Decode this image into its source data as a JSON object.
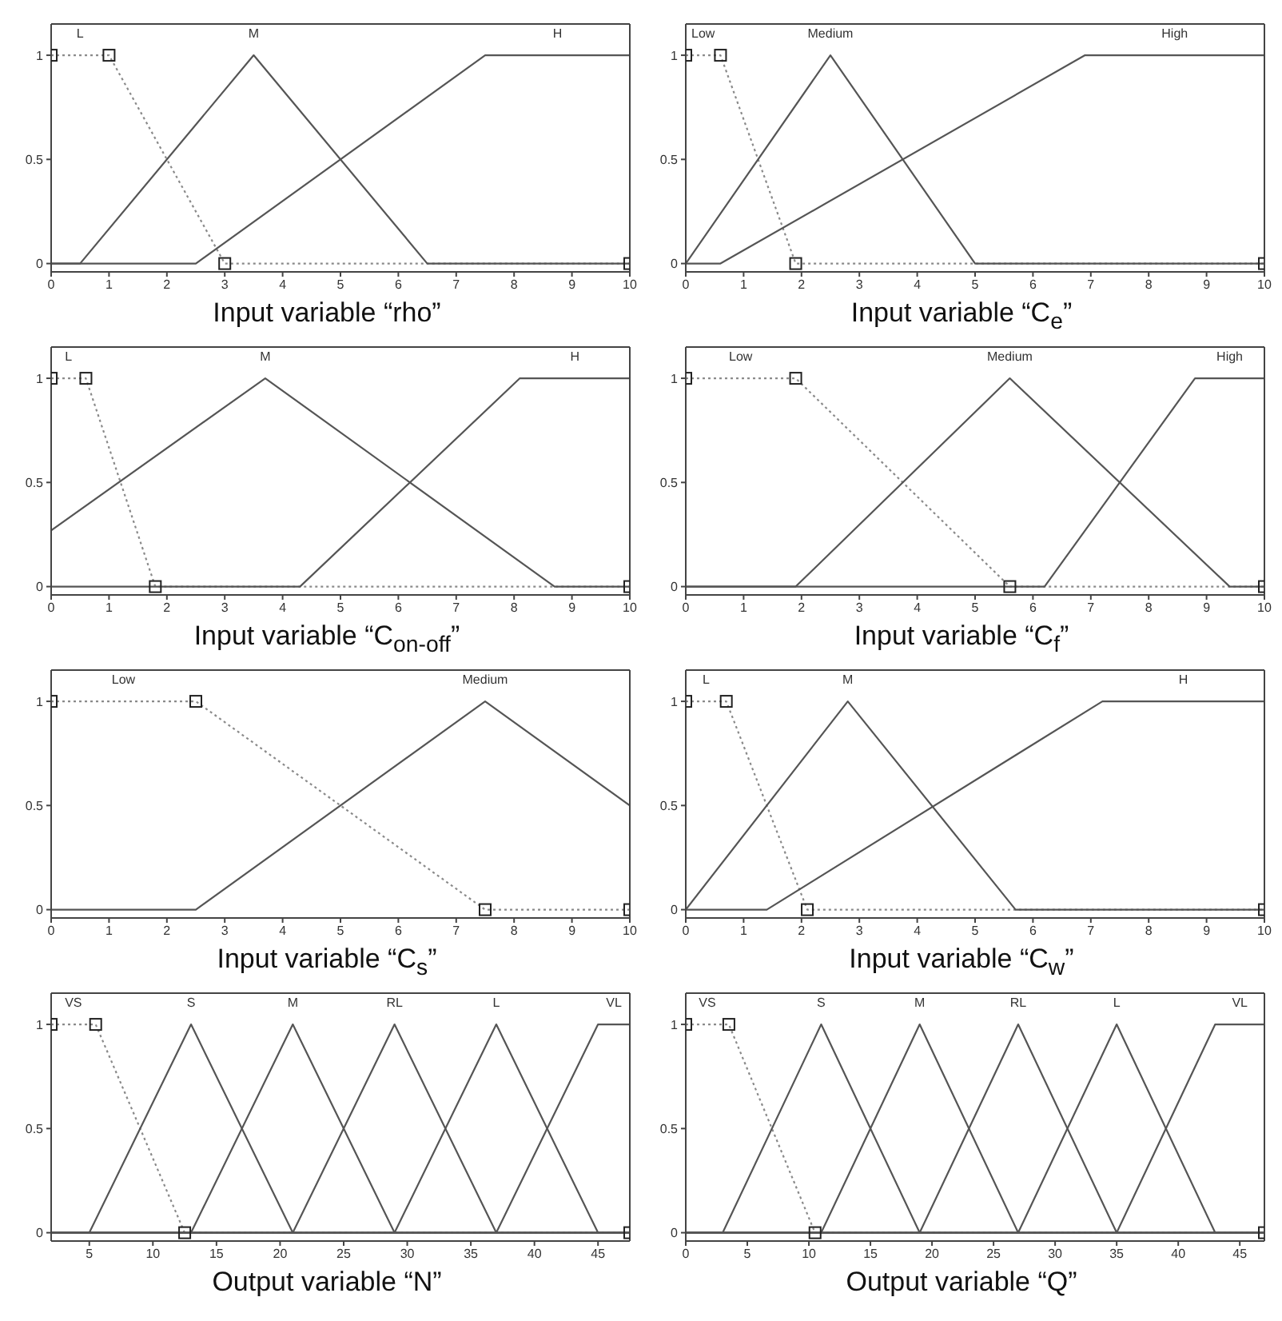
{
  "chart_data": [
    {
      "type": "line",
      "title": "Input variable “rho”",
      "xlim": [
        0,
        10
      ],
      "xticks": [
        0,
        1,
        2,
        3,
        4,
        5,
        6,
        7,
        8,
        9,
        10
      ],
      "ylim": [
        -0.04,
        1.15
      ],
      "yticks": [
        0,
        0.5,
        1
      ],
      "legend": false,
      "grid": false,
      "series": [
        {
          "name": "L",
          "color": "#8a8a8a",
          "marker": "square",
          "line_style": "dotted",
          "x": [
            0,
            1,
            3,
            10
          ],
          "values": [
            1,
            1,
            0,
            0
          ]
        },
        {
          "name": "M",
          "color": "#555555",
          "marker": "none",
          "line_style": "solid",
          "x": [
            0,
            0.5,
            3.5,
            6.5,
            10
          ],
          "values": [
            0,
            0,
            1,
            0,
            0
          ]
        },
        {
          "name": "H",
          "color": "#555555",
          "marker": "none",
          "line_style": "solid",
          "x": [
            0,
            2.5,
            7.5,
            10
          ],
          "values": [
            0,
            0,
            1,
            1
          ]
        }
      ]
    },
    {
      "type": "line",
      "title": "Input variable “C$_{e}$”",
      "xlim": [
        0,
        10
      ],
      "xticks": [
        0,
        1,
        2,
        3,
        4,
        5,
        6,
        7,
        8,
        9,
        10
      ],
      "ylim": [
        -0.04,
        1.15
      ],
      "yticks": [
        0,
        0.5,
        1
      ],
      "legend": false,
      "grid": false,
      "series": [
        {
          "name": "Low",
          "color": "#8a8a8a",
          "marker": "square",
          "line_style": "dotted",
          "x": [
            0,
            0.6,
            1.9,
            10
          ],
          "values": [
            1,
            1,
            0,
            0
          ]
        },
        {
          "name": "Medium",
          "color": "#555555",
          "marker": "none",
          "line_style": "solid",
          "x": [
            0,
            2.5,
            5,
            10
          ],
          "values": [
            0,
            1,
            0,
            0
          ]
        },
        {
          "name": "High",
          "color": "#555555",
          "marker": "none",
          "line_style": "solid",
          "x": [
            0,
            0.6,
            6.9,
            10
          ],
          "values": [
            0,
            0,
            1,
            1
          ]
        }
      ]
    },
    {
      "type": "line",
      "title": "Input variable “C$_{on-off}$”",
      "xlim": [
        0,
        10
      ],
      "xticks": [
        0,
        1,
        2,
        3,
        4,
        5,
        6,
        7,
        8,
        9,
        10
      ],
      "ylim": [
        -0.04,
        1.15
      ],
      "yticks": [
        0,
        0.5,
        1
      ],
      "legend": false,
      "grid": false,
      "series": [
        {
          "name": "L",
          "color": "#8a8a8a",
          "marker": "square",
          "line_style": "dotted",
          "x": [
            0,
            0.6,
            1.8,
            10
          ],
          "values": [
            1,
            1,
            0,
            0
          ]
        },
        {
          "name": "M",
          "color": "#555555",
          "marker": "none",
          "line_style": "solid",
          "x": [
            0,
            3.7,
            8.7,
            10
          ],
          "values": [
            0.27,
            1,
            0,
            0
          ]
        },
        {
          "name": "H",
          "color": "#555555",
          "marker": "none",
          "line_style": "solid",
          "x": [
            0,
            4.3,
            8.1,
            10
          ],
          "values": [
            0,
            0,
            1,
            1
          ]
        }
      ]
    },
    {
      "type": "line",
      "title": "Input variable “C$_{f}$”",
      "xlim": [
        0,
        10
      ],
      "xticks": [
        0,
        1,
        2,
        3,
        4,
        5,
        6,
        7,
        8,
        9,
        10
      ],
      "ylim": [
        -0.04,
        1.15
      ],
      "yticks": [
        0,
        0.5,
        1
      ],
      "legend": false,
      "grid": false,
      "series": [
        {
          "name": "Low",
          "color": "#8a8a8a",
          "marker": "square",
          "line_style": "dotted",
          "x": [
            0,
            1.9,
            5.6,
            10
          ],
          "values": [
            1,
            1,
            0,
            0
          ]
        },
        {
          "name": "Medium",
          "color": "#555555",
          "marker": "none",
          "line_style": "solid",
          "x": [
            0,
            1.9,
            5.6,
            9.4,
            10
          ],
          "values": [
            0,
            0,
            1,
            0,
            0
          ]
        },
        {
          "name": "High",
          "color": "#555555",
          "marker": "none",
          "line_style": "solid",
          "x": [
            0,
            6.2,
            8.8,
            10
          ],
          "values": [
            0,
            0,
            1,
            1
          ]
        }
      ]
    },
    {
      "type": "line",
      "title": "Input variable “C$_{s}$”",
      "xlim": [
        0,
        10
      ],
      "xticks": [
        0,
        1,
        2,
        3,
        4,
        5,
        6,
        7,
        8,
        9,
        10
      ],
      "ylim": [
        -0.04,
        1.15
      ],
      "yticks": [
        0,
        0.5,
        1
      ],
      "legend": false,
      "grid": false,
      "series": [
        {
          "name": "Low",
          "color": "#8a8a8a",
          "marker": "square",
          "line_style": "dotted",
          "x": [
            0,
            2.5,
            7.5,
            10
          ],
          "values": [
            1,
            1,
            0,
            0
          ]
        },
        {
          "name": "Medium",
          "color": "#555555",
          "marker": "none",
          "line_style": "solid",
          "x": [
            0,
            2.5,
            7.5,
            10
          ],
          "values": [
            0,
            0,
            1,
            0.5
          ]
        }
      ]
    },
    {
      "type": "line",
      "title": "Input variable “C$_{w}$”",
      "xlim": [
        0,
        10
      ],
      "xticks": [
        0,
        1,
        2,
        3,
        4,
        5,
        6,
        7,
        8,
        9,
        10
      ],
      "ylim": [
        -0.04,
        1.15
      ],
      "yticks": [
        0,
        0.5,
        1
      ],
      "legend": false,
      "grid": false,
      "series": [
        {
          "name": "L",
          "color": "#8a8a8a",
          "marker": "square",
          "line_style": "dotted",
          "x": [
            0,
            0.7,
            2.1,
            10
          ],
          "values": [
            1,
            1,
            0,
            0
          ]
        },
        {
          "name": "M",
          "color": "#555555",
          "marker": "none",
          "line_style": "solid",
          "x": [
            0,
            2.8,
            5.7,
            10
          ],
          "values": [
            0,
            1,
            0,
            0
          ]
        },
        {
          "name": "H",
          "color": "#555555",
          "marker": "none",
          "line_style": "solid",
          "x": [
            0,
            1.4,
            7.2,
            10
          ],
          "values": [
            0,
            0,
            1,
            1
          ]
        }
      ]
    },
    {
      "type": "line",
      "title": "Output variable “N”",
      "xlim": [
        2,
        47.5
      ],
      "xticks": [
        5,
        10,
        15,
        20,
        25,
        30,
        35,
        40,
        45
      ],
      "ylim": [
        -0.04,
        1.15
      ],
      "yticks": [
        0,
        0.5,
        1
      ],
      "legend": false,
      "grid": false,
      "series": [
        {
          "name": "VS",
          "color": "#8a8a8a",
          "marker": "square",
          "line_style": "dotted",
          "x": [
            2,
            5.5,
            12.5,
            47.5
          ],
          "values": [
            1,
            1,
            0,
            0
          ]
        },
        {
          "name": "S",
          "color": "#555555",
          "marker": "none",
          "line_style": "solid",
          "x": [
            2,
            5,
            13,
            21,
            47.5
          ],
          "values": [
            0,
            0,
            1,
            0,
            0
          ]
        },
        {
          "name": "M",
          "color": "#555555",
          "marker": "none",
          "line_style": "solid",
          "x": [
            2,
            13,
            21,
            29,
            47.5
          ],
          "values": [
            0,
            0,
            1,
            0,
            0
          ]
        },
        {
          "name": "RL",
          "color": "#555555",
          "marker": "none",
          "line_style": "solid",
          "x": [
            2,
            21,
            29,
            37,
            47.5
          ],
          "values": [
            0,
            0,
            1,
            0,
            0
          ]
        },
        {
          "name": "L",
          "color": "#555555",
          "marker": "none",
          "line_style": "solid",
          "x": [
            2,
            29,
            37,
            45,
            47.5
          ],
          "values": [
            0,
            0,
            1,
            0,
            0
          ]
        },
        {
          "name": "VL",
          "color": "#555555",
          "marker": "none",
          "line_style": "solid",
          "x": [
            2,
            37,
            45,
            47.5
          ],
          "values": [
            0,
            0,
            1,
            1
          ]
        }
      ]
    },
    {
      "type": "line",
      "title": "Output variable “Q”",
      "xlim": [
        0,
        47
      ],
      "xticks": [
        0,
        5,
        10,
        15,
        20,
        25,
        30,
        35,
        40,
        45
      ],
      "ylim": [
        -0.04,
        1.15
      ],
      "yticks": [
        0,
        0.5,
        1
      ],
      "legend": false,
      "grid": false,
      "series": [
        {
          "name": "VS",
          "color": "#8a8a8a",
          "marker": "square",
          "line_style": "dotted",
          "x": [
            0,
            3.5,
            10.5,
            47
          ],
          "values": [
            1,
            1,
            0,
            0
          ]
        },
        {
          "name": "S",
          "color": "#555555",
          "marker": "none",
          "line_style": "solid",
          "x": [
            0,
            3,
            11,
            19,
            47
          ],
          "values": [
            0,
            0,
            1,
            0,
            0
          ]
        },
        {
          "name": "M",
          "color": "#555555",
          "marker": "none",
          "line_style": "solid",
          "x": [
            0,
            11,
            19,
            27,
            47
          ],
          "values": [
            0,
            0,
            1,
            0,
            0
          ]
        },
        {
          "name": "RL",
          "color": "#555555",
          "marker": "none",
          "line_style": "solid",
          "x": [
            0,
            19,
            27,
            35,
            47
          ],
          "values": [
            0,
            0,
            1,
            0,
            0
          ]
        },
        {
          "name": "L",
          "color": "#555555",
          "marker": "none",
          "line_style": "solid",
          "x": [
            0,
            27,
            35,
            43,
            47
          ],
          "values": [
            0,
            0,
            1,
            0,
            0
          ]
        },
        {
          "name": "VL",
          "color": "#555555",
          "marker": "none",
          "line_style": "solid",
          "x": [
            0,
            35,
            43,
            47
          ],
          "values": [
            0,
            0,
            1,
            1
          ]
        }
      ]
    }
  ]
}
